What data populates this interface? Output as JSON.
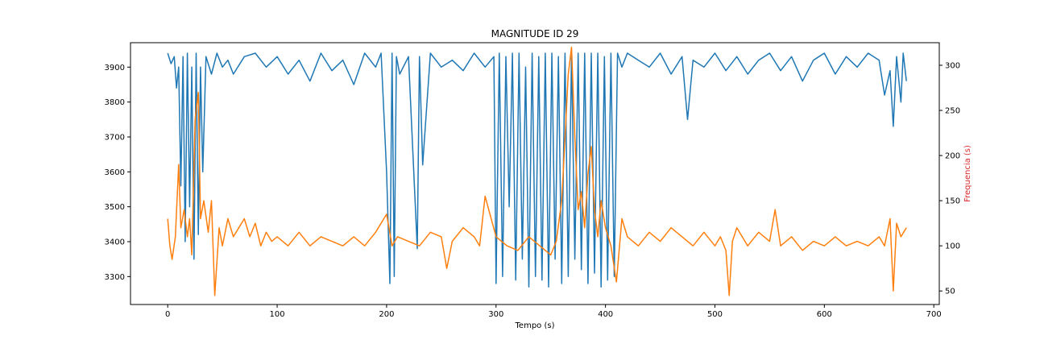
{
  "chart_data": {
    "type": "line",
    "title": "MAGNITUDE ID 29",
    "xlabel": "Tempo (s)",
    "ylabel": "",
    "y2label": "Frequencia (s)",
    "xlim": [
      -34,
      705
    ],
    "ylim": [
      3220,
      3970
    ],
    "y2lim": [
      35,
      325
    ],
    "x_ticks": [
      0,
      100,
      200,
      300,
      400,
      500,
      600,
      700
    ],
    "y_ticks": [
      3300,
      3400,
      3500,
      3600,
      3700,
      3800,
      3900
    ],
    "y2_ticks": [
      50,
      100,
      150,
      200,
      250,
      300
    ],
    "grid": false,
    "colors": {
      "series1": "#1f77b4",
      "series2": "#ff7f0e",
      "y2label": "#d62728"
    },
    "series": [
      {
        "axis": "left",
        "x": [
          0,
          3,
          6,
          8,
          10,
          12,
          14,
          16,
          18,
          20,
          22,
          24,
          26,
          28,
          30,
          32,
          35,
          40,
          45,
          50,
          55,
          60,
          70,
          80,
          90,
          100,
          110,
          120,
          130,
          140,
          150,
          160,
          170,
          180,
          190,
          195,
          200,
          203,
          205,
          207,
          209,
          212,
          220,
          228,
          230,
          233,
          240,
          250,
          260,
          270,
          280,
          290,
          298,
          300,
          303,
          306,
          309,
          312,
          315,
          318,
          321,
          324,
          327,
          330,
          333,
          336,
          339,
          342,
          345,
          348,
          351,
          354,
          357,
          360,
          363,
          366,
          369,
          372,
          375,
          378,
          381,
          384,
          387,
          390,
          393,
          396,
          399,
          402,
          405,
          408,
          411,
          415,
          420,
          430,
          440,
          450,
          460,
          470,
          475,
          480,
          490,
          500,
          510,
          520,
          530,
          540,
          550,
          560,
          570,
          580,
          590,
          600,
          610,
          620,
          630,
          640,
          650,
          655,
          660,
          663,
          666,
          670,
          672,
          675
        ],
        "values": [
          3940,
          3910,
          3930,
          3840,
          3900,
          3560,
          3930,
          3400,
          3940,
          3500,
          3900,
          3350,
          3940,
          3420,
          3900,
          3600,
          3930,
          3880,
          3940,
          3900,
          3920,
          3880,
          3930,
          3940,
          3900,
          3930,
          3880,
          3920,
          3860,
          3940,
          3890,
          3920,
          3850,
          3940,
          3900,
          3940,
          3600,
          3280,
          3940,
          3300,
          3930,
          3880,
          3930,
          3380,
          3930,
          3620,
          3940,
          3900,
          3920,
          3890,
          3940,
          3900,
          3930,
          3280,
          3940,
          3300,
          3930,
          3500,
          3940,
          3290,
          3940,
          3350,
          3900,
          3270,
          3940,
          3300,
          3930,
          3290,
          3940,
          3270,
          3940,
          3350,
          3930,
          3280,
          3940,
          3300,
          3940,
          3350,
          3940,
          3320,
          3940,
          3280,
          3940,
          3310,
          3940,
          3270,
          3930,
          3290,
          3940,
          3300,
          3940,
          3900,
          3940,
          3920,
          3900,
          3940,
          3880,
          3930,
          3750,
          3920,
          3900,
          3940,
          3890,
          3930,
          3880,
          3920,
          3940,
          3890,
          3930,
          3860,
          3920,
          3940,
          3880,
          3930,
          3900,
          3940,
          3920,
          3820,
          3890,
          3730,
          3930,
          3800,
          3940,
          3860
        ]
      },
      {
        "axis": "right",
        "x": [
          0,
          2,
          4,
          7,
          10,
          12,
          15,
          18,
          20,
          22,
          25,
          28,
          30,
          33,
          37,
          40,
          43,
          47,
          50,
          55,
          60,
          65,
          70,
          75,
          80,
          85,
          90,
          95,
          100,
          110,
          120,
          130,
          140,
          150,
          160,
          170,
          180,
          190,
          200,
          205,
          210,
          220,
          230,
          240,
          250,
          255,
          260,
          270,
          280,
          285,
          290,
          300,
          310,
          320,
          330,
          340,
          350,
          355,
          360,
          363,
          366,
          369,
          372,
          375,
          378,
          381,
          384,
          387,
          390,
          393,
          396,
          400,
          405,
          410,
          415,
          420,
          430,
          440,
          450,
          460,
          470,
          480,
          490,
          500,
          505,
          510,
          513,
          516,
          520,
          530,
          540,
          550,
          555,
          560,
          570,
          580,
          590,
          600,
          610,
          620,
          630,
          640,
          650,
          655,
          660,
          663,
          666,
          670,
          675
        ],
        "values": [
          130,
          100,
          85,
          110,
          190,
          120,
          140,
          110,
          130,
          90,
          240,
          270,
          130,
          150,
          115,
          150,
          45,
          120,
          100,
          130,
          110,
          120,
          130,
          110,
          125,
          100,
          115,
          105,
          110,
          100,
          115,
          100,
          110,
          105,
          100,
          110,
          100,
          115,
          135,
          100,
          110,
          105,
          100,
          115,
          110,
          75,
          105,
          120,
          110,
          100,
          155,
          110,
          100,
          95,
          110,
          100,
          90,
          105,
          150,
          220,
          290,
          320,
          220,
          140,
          160,
          120,
          180,
          210,
          140,
          110,
          150,
          120,
          100,
          60,
          130,
          110,
          100,
          115,
          105,
          120,
          110,
          100,
          115,
          100,
          110,
          95,
          45,
          105,
          120,
          100,
          115,
          105,
          140,
          100,
          110,
          95,
          105,
          100,
          110,
          100,
          105,
          100,
          110,
          100,
          130,
          50,
          125,
          110,
          120
        ]
      }
    ]
  }
}
